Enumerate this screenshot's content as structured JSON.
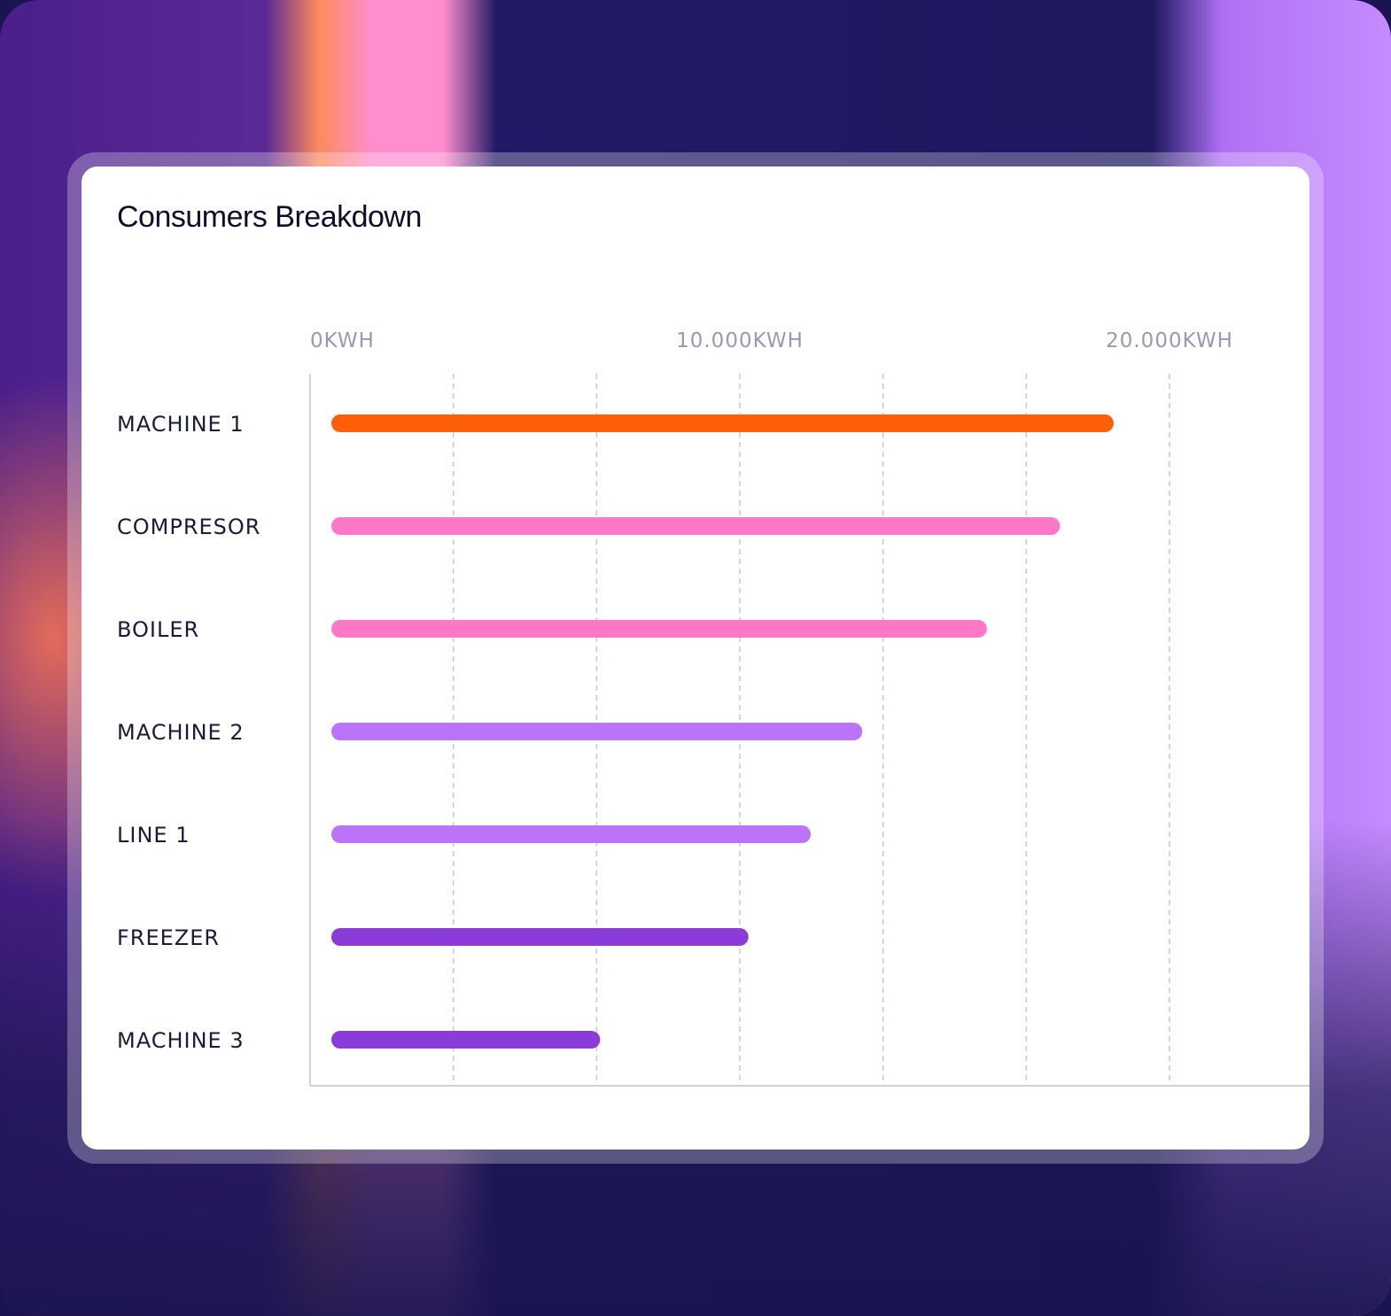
{
  "title": "Consumers Breakdown",
  "chart_data": {
    "type": "bar",
    "orientation": "horizontal",
    "title": "Consumers Breakdown",
    "xlim": [
      0,
      20000
    ],
    "xticks": [
      0,
      10000,
      20000
    ],
    "xtick_labels": [
      "0KWH",
      "10.000KWH",
      "20.000KWH"
    ],
    "categories": [
      "MACHINE 1",
      "COMPRESOR",
      "BOILER",
      "MACHINE 2",
      "LINE 1",
      "FREEZER",
      "MACHINE 3"
    ],
    "values": [
      18700,
      17450,
      15750,
      12850,
      11650,
      10200,
      6750
    ],
    "colors": [
      "#ff5f06",
      "#ff78c8",
      "#ff78c8",
      "#bb74f7",
      "#bb74f7",
      "#8a3bd8",
      "#8a3bd8"
    ],
    "grid": "vertical dashed",
    "legend": "none"
  }
}
